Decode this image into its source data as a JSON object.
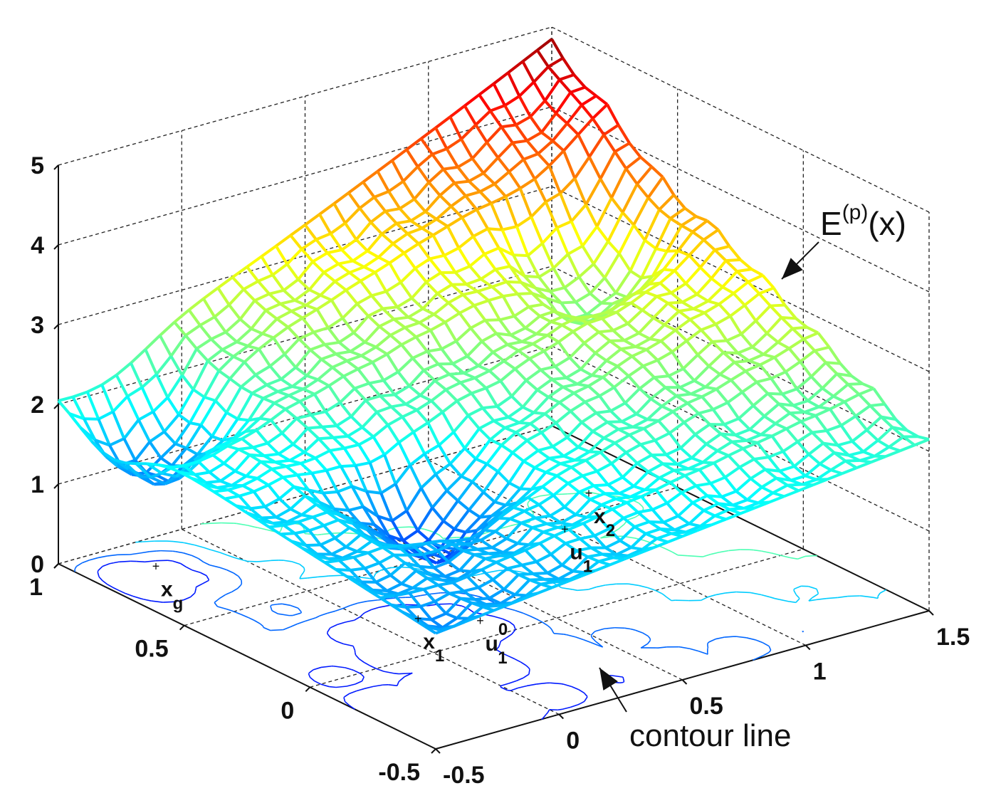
{
  "chart_data": {
    "type": "surface",
    "title": "",
    "xlabel": "",
    "ylabel": "",
    "zlabel": "",
    "xlim": [
      -0.5,
      1.5
    ],
    "ylim": [
      -0.5,
      1
    ],
    "zlim": [
      0,
      5
    ],
    "x_ticks": [
      "-0.5",
      "0",
      "0.5",
      "1",
      "1.5"
    ],
    "y_ticks": [
      "-0.5",
      "0",
      "0.5",
      "1"
    ],
    "z_ticks": [
      "0",
      "1",
      "2",
      "3",
      "4",
      "5"
    ],
    "grid": true,
    "colormap": "jet",
    "surface_label": {
      "base": "E",
      "sup": "(p)",
      "tail": "(x)"
    },
    "contour_label": "contour line",
    "points": [
      {
        "base": "x",
        "sub": "g",
        "x": -0.3,
        "y": 0.8
      },
      {
        "base": "x",
        "sub": "1",
        "x": 0.1,
        "y": 0.15
      },
      {
        "base": "x",
        "sub": "2",
        "x": 1.2,
        "y": 0.55
      },
      {
        "base": "u",
        "sub": "1",
        "sup": "0",
        "x": 0.25,
        "y": 0.05
      },
      {
        "base": "u",
        "sub": "1",
        "x": 0.95,
        "y": 0.4
      }
    ],
    "surface_peak": {
      "x": 1.5,
      "y": 1,
      "z": 5
    },
    "surface_minima": [
      {
        "x": -0.3,
        "y": 0.8,
        "z": 1.1
      },
      {
        "x": 0.1,
        "y": 0.15,
        "z": 1.2
      },
      {
        "x": 1.2,
        "y": 0.55,
        "z": 1.1
      }
    ]
  }
}
